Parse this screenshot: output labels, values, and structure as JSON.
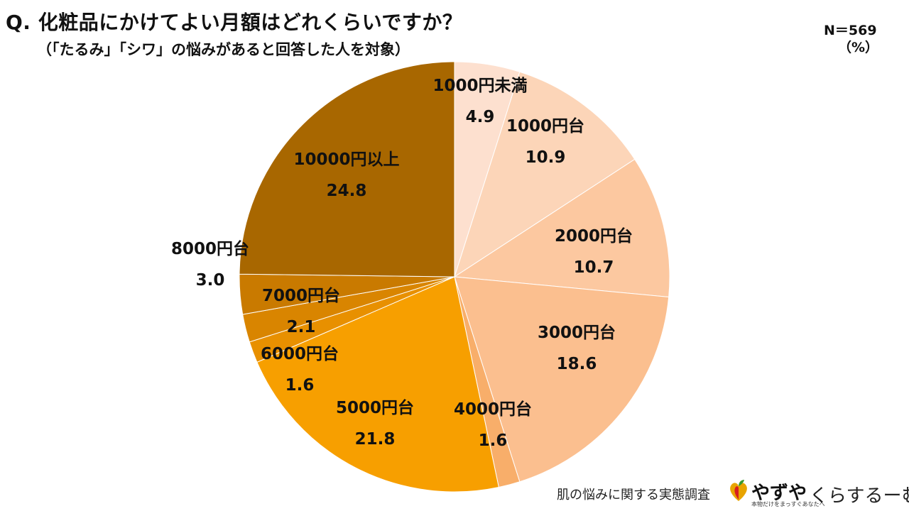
{
  "title": "Q. 化粧品にかけてよい月額はどれくらいですか？",
  "subtitle": "（「たるみ」「シワ」の悩みがあると回答した人を対象）",
  "n_label": "N＝569",
  "unit_label": "（%）",
  "chart_data": {
    "type": "pie",
    "title": "Q. 化粧品にかけてよい月額はどれくらいですか？",
    "subtitle": "（「たるみ」「シワ」の悩みがあると回答した人を対象）",
    "unit": "%",
    "start": "12 o'clock",
    "direction": "clockwise",
    "slices": [
      {
        "label": "1000円未満",
        "value": 4.9,
        "display": "4.9",
        "color": "#fde0cf"
      },
      {
        "label": "1000円台",
        "value": 10.9,
        "display": "10.9",
        "color": "#fcd5b8"
      },
      {
        "label": "2000円台",
        "value": 10.7,
        "display": "10.7",
        "color": "#fcc8a0"
      },
      {
        "label": "3000円台",
        "value": 18.6,
        "display": "18.6",
        "color": "#fbbf8f"
      },
      {
        "label": "4000円台",
        "value": 1.6,
        "display": "1.6",
        "color": "#f8ae6a"
      },
      {
        "label": "5000円台",
        "value": 21.8,
        "display": "21.8",
        "color": "#f79f00"
      },
      {
        "label": "6000円台",
        "value": 1.6,
        "display": "1.6",
        "color": "#e89000"
      },
      {
        "label": "7000円台",
        "value": 2.1,
        "display": "2.1",
        "color": "#d98500"
      },
      {
        "label": "8000円台",
        "value": 3.0,
        "display": "3.0",
        "color": "#c97a00"
      },
      {
        "label": "10000円以上",
        "value": 24.8,
        "display": "24.8",
        "color": "#a86700"
      }
    ]
  },
  "footer": {
    "survey_text": "肌の悩みに関する実態調査",
    "brand_name": "やずや",
    "brand_tagline": "本物だけをまっすぐあなたへ",
    "brand2": "くらするーむ",
    "logo_icon": "heart-leaf-icon"
  }
}
